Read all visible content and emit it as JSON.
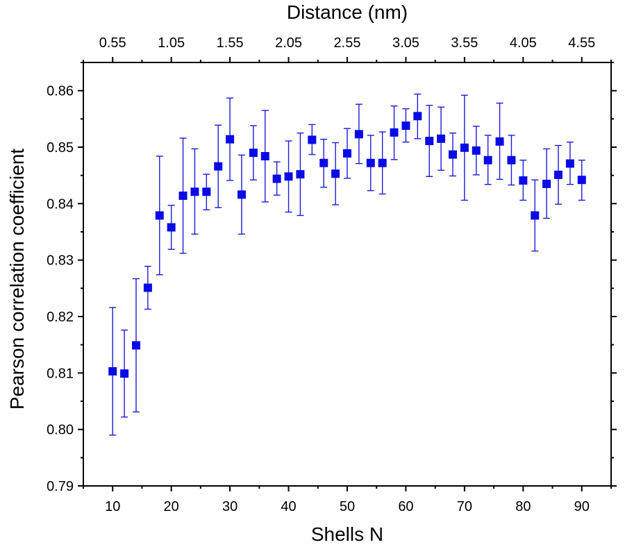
{
  "chart_data": {
    "type": "scatter",
    "xlabel": "Shells N",
    "ylabel": "Pearson correlation coefficient",
    "x2label": "Distance (nm)",
    "xlim": [
      5,
      95
    ],
    "ylim": [
      0.79,
      0.865
    ],
    "x_ticks": [
      10,
      20,
      30,
      40,
      50,
      60,
      70,
      80,
      90
    ],
    "x_tick_labels": [
      "10",
      "20",
      "30",
      "40",
      "50",
      "60",
      "70",
      "80",
      "90"
    ],
    "y_ticks": [
      0.79,
      0.8,
      0.81,
      0.82,
      0.83,
      0.84,
      0.85,
      0.86
    ],
    "y_tick_labels": [
      "0.79",
      "0.80",
      "0.81",
      "0.82",
      "0.83",
      "0.84",
      "0.85",
      "0.86"
    ],
    "x2_ticks": [
      10,
      20,
      30,
      40,
      50,
      60,
      70,
      80,
      90
    ],
    "x2_tick_labels": [
      "0.55",
      "1.05",
      "1.55",
      "2.05",
      "2.55",
      "3.05",
      "3.55",
      "4.05",
      "4.55"
    ],
    "grid": false,
    "colors": {
      "marker": "#0a0ae6",
      "error_bar": "#1a1adb",
      "axis": "#000000"
    },
    "series": [
      {
        "name": "Pearson correlation coefficient",
        "x": [
          10,
          12,
          14,
          16,
          18,
          20,
          22,
          24,
          26,
          28,
          30,
          32,
          34,
          36,
          38,
          40,
          42,
          44,
          46,
          48,
          50,
          52,
          54,
          56,
          58,
          60,
          62,
          64,
          66,
          68,
          70,
          72,
          74,
          76,
          78,
          80,
          82,
          84,
          86,
          88,
          90
        ],
        "y": [
          0.8103,
          0.8099,
          0.8149,
          0.8251,
          0.8379,
          0.8358,
          0.8414,
          0.8421,
          0.8421,
          0.8466,
          0.8514,
          0.8416,
          0.849,
          0.8484,
          0.8444,
          0.8448,
          0.8452,
          0.8513,
          0.8472,
          0.8453,
          0.8489,
          0.8523,
          0.8472,
          0.8472,
          0.8526,
          0.8538,
          0.8555,
          0.8511,
          0.8515,
          0.8487,
          0.8499,
          0.8494,
          0.8477,
          0.851,
          0.8477,
          0.8441,
          0.8379,
          0.8435,
          0.8451,
          0.8471,
          0.8442
        ],
        "err_upper": [
          0.8216,
          0.8176,
          0.8267,
          0.8289,
          0.8484,
          0.8397,
          0.8516,
          0.8497,
          0.8452,
          0.8539,
          0.8587,
          0.8486,
          0.8538,
          0.8565,
          0.8474,
          0.8511,
          0.8525,
          0.854,
          0.8514,
          0.8508,
          0.8533,
          0.8576,
          0.8521,
          0.8527,
          0.8573,
          0.8568,
          0.8594,
          0.8574,
          0.8571,
          0.8525,
          0.8592,
          0.8537,
          0.8521,
          0.8578,
          0.8521,
          0.8477,
          0.8442,
          0.8497,
          0.8503,
          0.8509,
          0.8477
        ],
        "err_lower": [
          0.799,
          0.8022,
          0.8031,
          0.8213,
          0.8274,
          0.8319,
          0.8312,
          0.8346,
          0.8389,
          0.8393,
          0.8441,
          0.8346,
          0.8442,
          0.8403,
          0.8415,
          0.8385,
          0.8379,
          0.8487,
          0.8429,
          0.8398,
          0.8445,
          0.8471,
          0.8423,
          0.8417,
          0.8478,
          0.8509,
          0.8515,
          0.8448,
          0.8459,
          0.8449,
          0.8406,
          0.8451,
          0.8434,
          0.8443,
          0.8433,
          0.8406,
          0.8316,
          0.8374,
          0.8399,
          0.8434,
          0.8406
        ]
      }
    ]
  }
}
